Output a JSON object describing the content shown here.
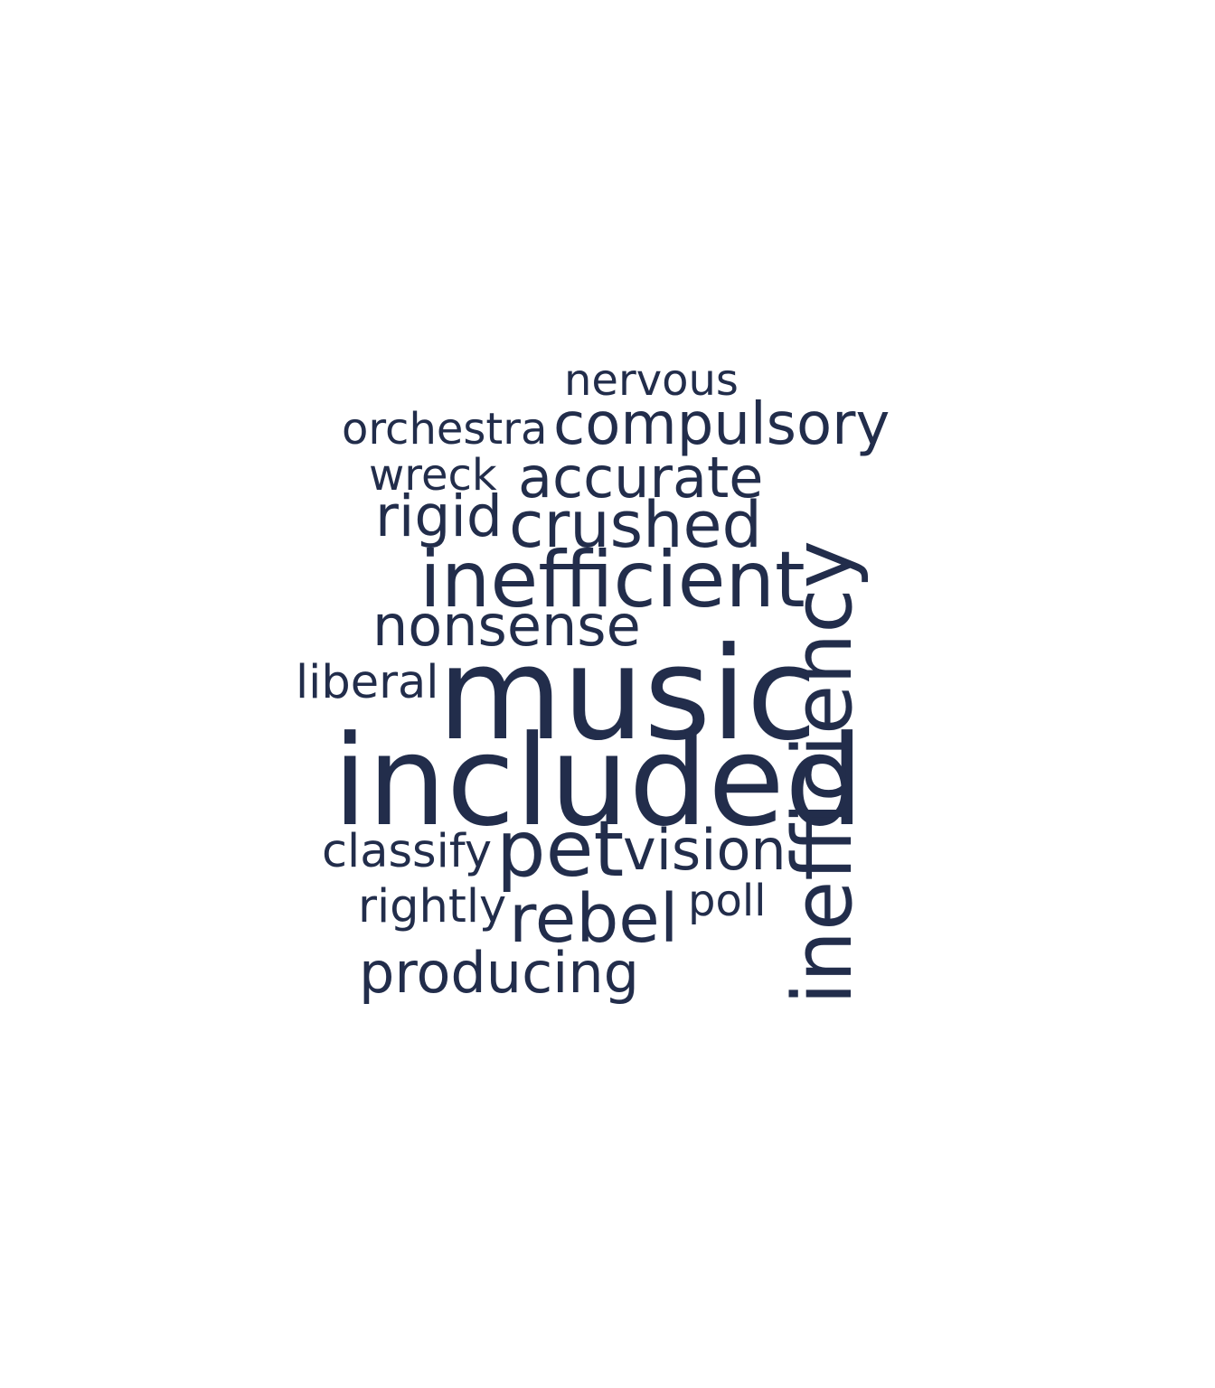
{
  "colors": {
    "background": "#ffffff",
    "text": "#222d4b"
  },
  "words": {
    "nervous": "nervous",
    "orchestra": "orchestra",
    "compulsory": "compulsory",
    "wreck": "wreck",
    "accurate": "accurate",
    "rigid": "rigid",
    "crushed": "crushed",
    "inefficient": "inefficient",
    "nonsense": "nonsense",
    "liberal": "liberal",
    "music": "music",
    "included": "included",
    "classify": "classify",
    "pet": "pet",
    "vision": "vision",
    "rightly": "rightly",
    "poll": "poll",
    "rebel": "rebel",
    "producing": "producing",
    "inefficiency": "inefficiency"
  }
}
